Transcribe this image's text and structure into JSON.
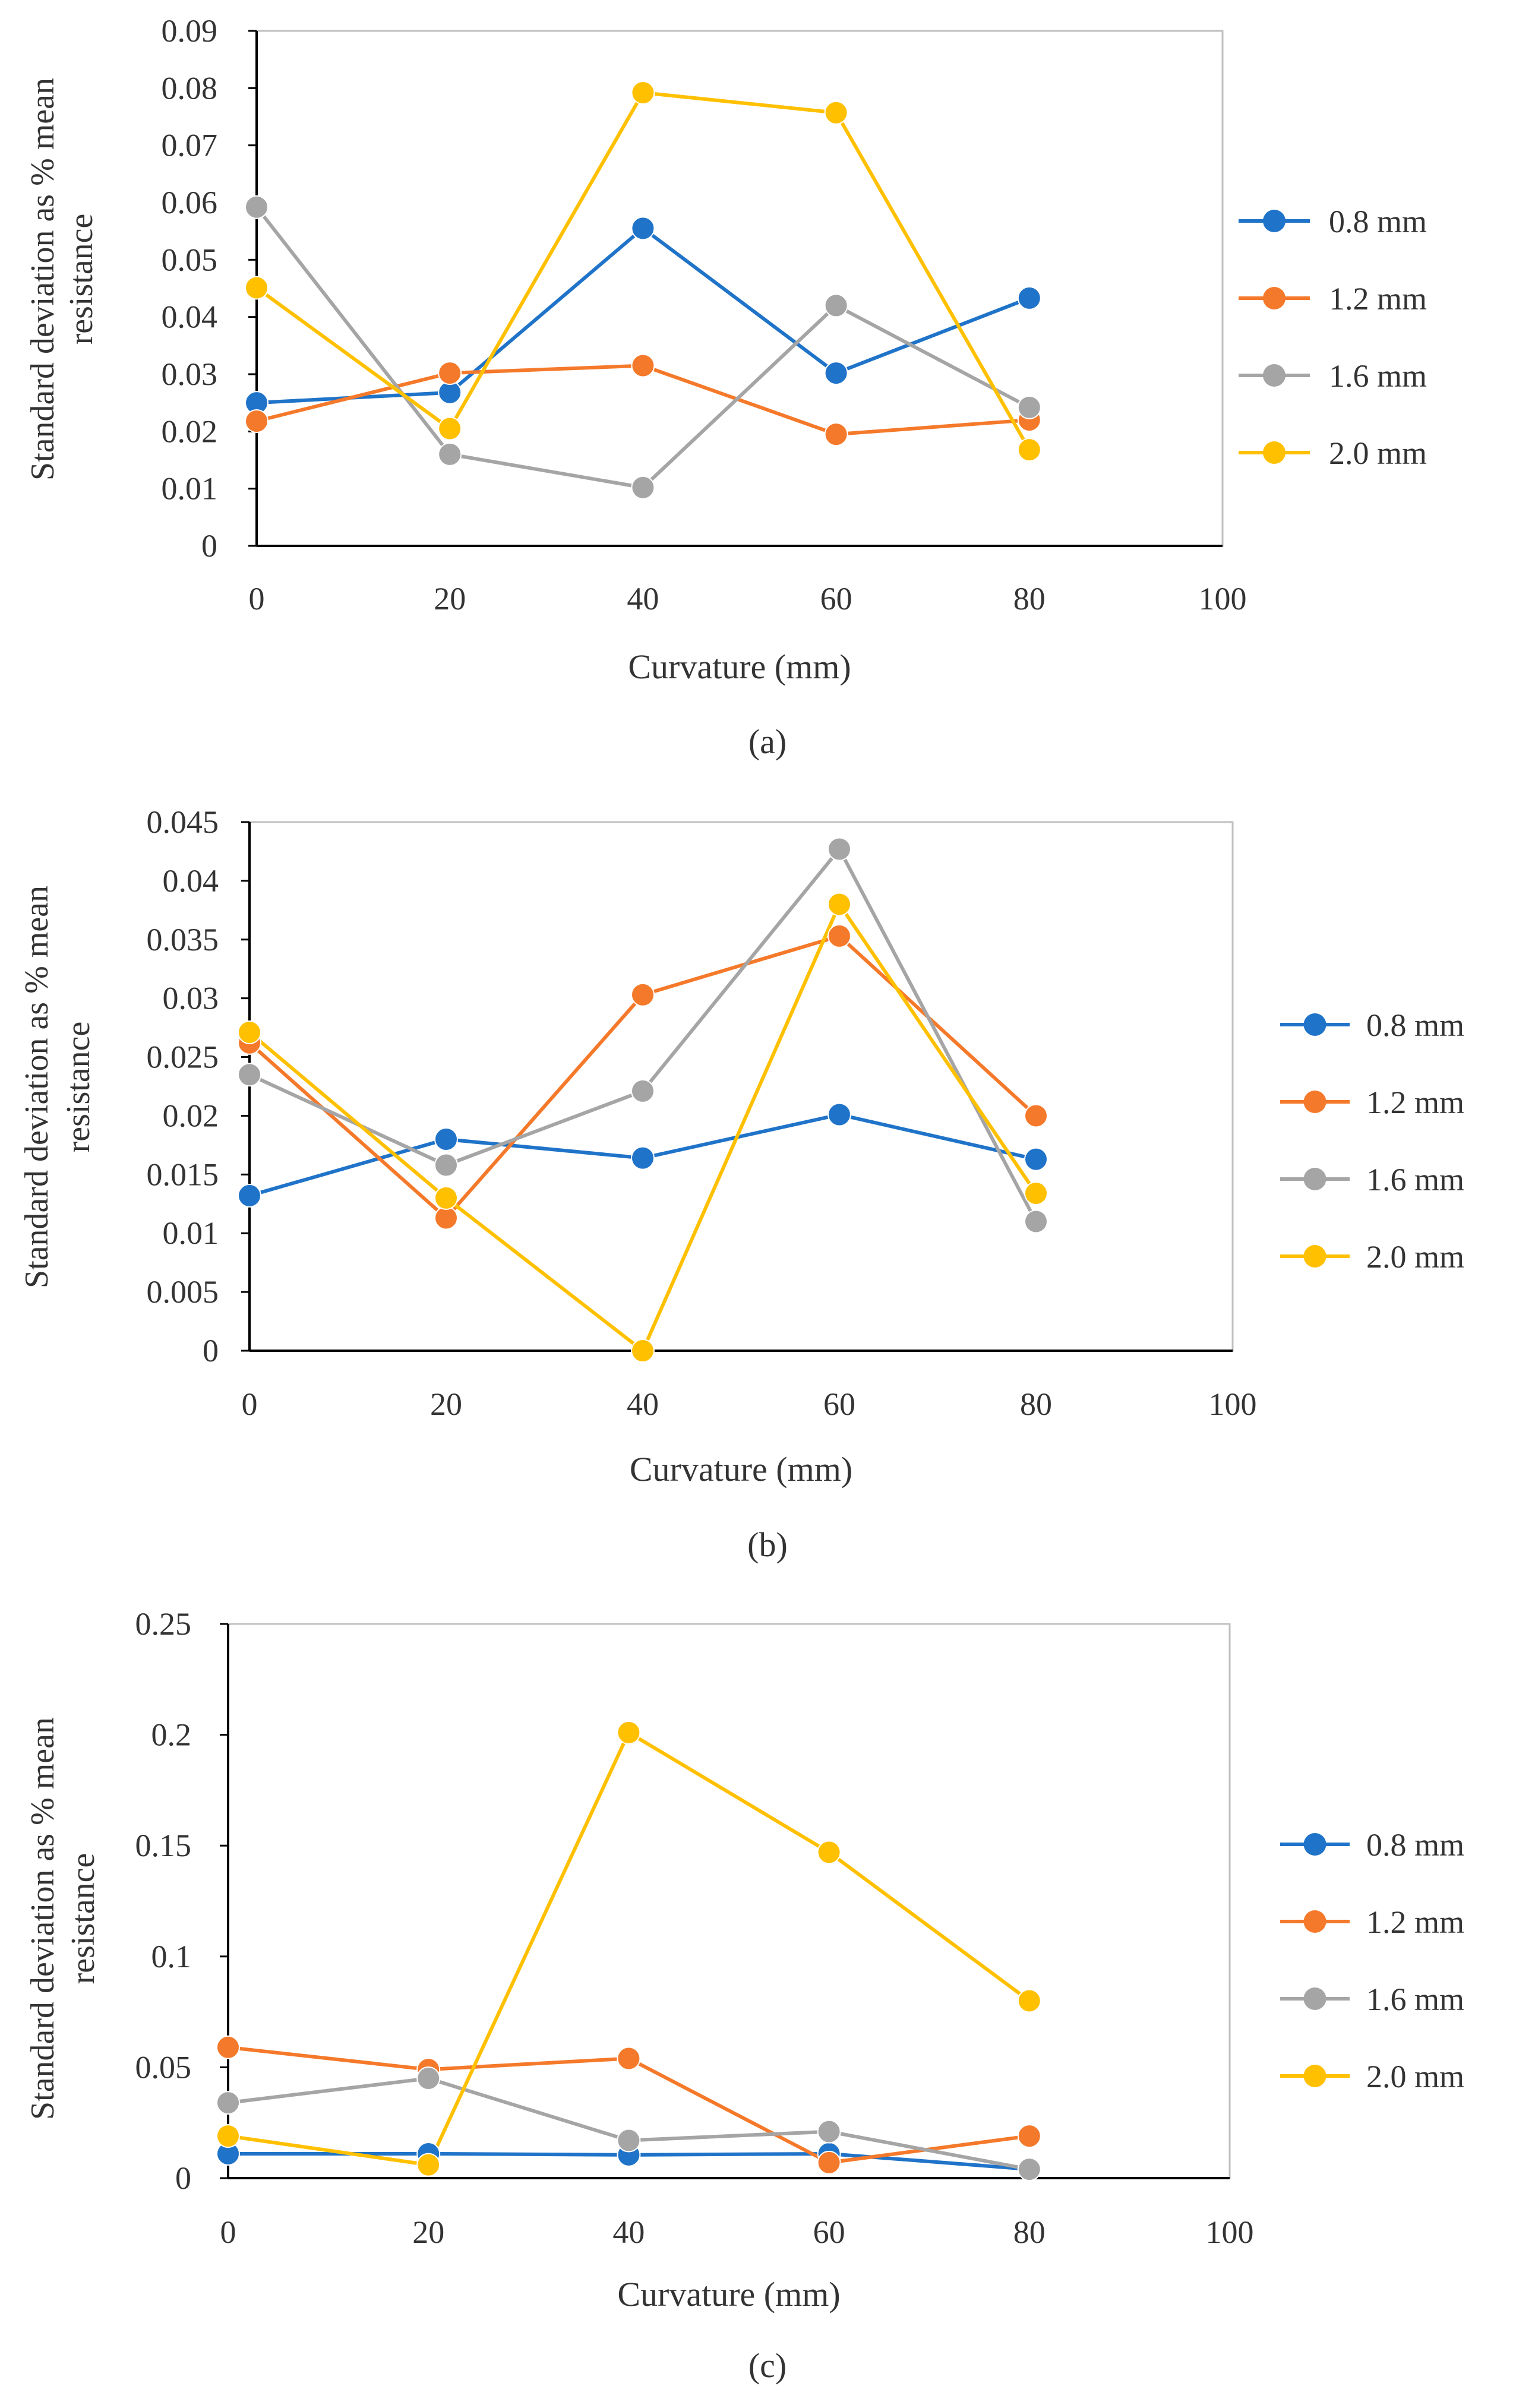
{
  "colors": {
    "0.8 mm": "#1f73c8",
    "1.2 mm": "#f5792a",
    "1.6 mm": "#a5a5a5",
    "2.0 mm": "#ffc000",
    "axis": "#000000",
    "frame": "#bfbfbf"
  },
  "chart_data": [
    {
      "type": "line",
      "panel_label": "a",
      "caption": "(a)",
      "title": "",
      "xlabel": "Curvature (mm)",
      "ylabel": [
        "Standard deviation as % mean",
        "resistance"
      ],
      "xlim": [
        0,
        100
      ],
      "ylim": [
        0,
        0.09
      ],
      "xticks": [
        0,
        20,
        40,
        60,
        80,
        100
      ],
      "xtick_labels": [
        "0",
        "20",
        "40",
        "60",
        "80",
        "100"
      ],
      "yticks": [
        0,
        0.01,
        0.02,
        0.03,
        0.04,
        0.05,
        0.06,
        0.07,
        0.08,
        0.09
      ],
      "ytick_labels": [
        "0",
        "0.01",
        "0.02",
        "0.03",
        "0.04",
        "0.05",
        "0.06",
        "0.07",
        "0.08",
        "0.09"
      ],
      "x": [
        0,
        20,
        40,
        60,
        80
      ],
      "legend_position": "right",
      "series": [
        {
          "name": "0.8 mm",
          "values": [
            0.025,
            0.0268,
            0.0555,
            0.0302,
            0.0433
          ]
        },
        {
          "name": "1.2 mm",
          "values": [
            0.0218,
            0.0302,
            0.0315,
            0.0195,
            0.022
          ]
        },
        {
          "name": "1.6 mm",
          "values": [
            0.0592,
            0.016,
            0.0102,
            0.042,
            0.0242
          ]
        },
        {
          "name": "2.0 mm",
          "values": [
            0.0451,
            0.0205,
            0.0792,
            0.0757,
            0.0168
          ]
        }
      ]
    },
    {
      "type": "line",
      "panel_label": "b",
      "caption": "(b)",
      "title": "",
      "xlabel": "Curvature (mm)",
      "ylabel": [
        "Standard deviation as % mean",
        "resistance"
      ],
      "xlim": [
        0,
        100
      ],
      "ylim": [
        0,
        0.045
      ],
      "xticks": [
        0,
        20,
        40,
        60,
        80,
        100
      ],
      "xtick_labels": [
        "0",
        "20",
        "40",
        "60",
        "80",
        "100"
      ],
      "yticks": [
        0,
        0.005,
        0.01,
        0.015,
        0.02,
        0.025,
        0.03,
        0.035,
        0.04,
        0.045
      ],
      "ytick_labels": [
        "0",
        "0.005",
        "0.01",
        "0.015",
        "0.02",
        "0.025",
        "0.03",
        "0.035",
        "0.04",
        "0.045"
      ],
      "x": [
        0,
        20,
        40,
        60,
        80
      ],
      "legend_position": "right",
      "series": [
        {
          "name": "0.8 mm",
          "values": [
            0.0132,
            0.018,
            0.0164,
            0.0201,
            0.0163
          ]
        },
        {
          "name": "1.2 mm",
          "values": [
            0.0262,
            0.0113,
            0.0303,
            0.0353,
            0.02
          ]
        },
        {
          "name": "1.6 mm",
          "values": [
            0.0235,
            0.0158,
            0.0221,
            0.0427,
            0.011
          ]
        },
        {
          "name": "2.0 mm",
          "values": [
            0.0271,
            0.013,
            0.0,
            0.038,
            0.0134
          ]
        }
      ]
    },
    {
      "type": "line",
      "panel_label": "c",
      "caption": "(c)",
      "title": "",
      "xlabel": "Curvature (mm)",
      "ylabel": [
        "Standard deviation as % mean",
        "resistance"
      ],
      "xlim": [
        0,
        100
      ],
      "ylim": [
        0,
        0.25
      ],
      "xticks": [
        0,
        20,
        40,
        60,
        80,
        100
      ],
      "xtick_labels": [
        "0",
        "20",
        "40",
        "60",
        "80",
        "100"
      ],
      "yticks": [
        0,
        0.05,
        0.1,
        0.15,
        0.2,
        0.25
      ],
      "ytick_labels": [
        "0",
        "0.05",
        "0.1",
        "0.15",
        "0.2",
        "0.25"
      ],
      "x": [
        0,
        20,
        40,
        60,
        80
      ],
      "legend_position": "right",
      "series": [
        {
          "name": "0.8 mm",
          "values": [
            0.011,
            0.011,
            0.0105,
            0.011,
            0.004
          ]
        },
        {
          "name": "1.2 mm",
          "values": [
            0.059,
            0.049,
            0.054,
            0.007,
            0.019
          ]
        },
        {
          "name": "1.6 mm",
          "values": [
            0.034,
            0.045,
            0.017,
            0.021,
            0.004
          ]
        },
        {
          "name": "2.0 mm",
          "values": [
            0.019,
            0.006,
            0.201,
            0.147,
            0.08
          ]
        }
      ]
    }
  ]
}
